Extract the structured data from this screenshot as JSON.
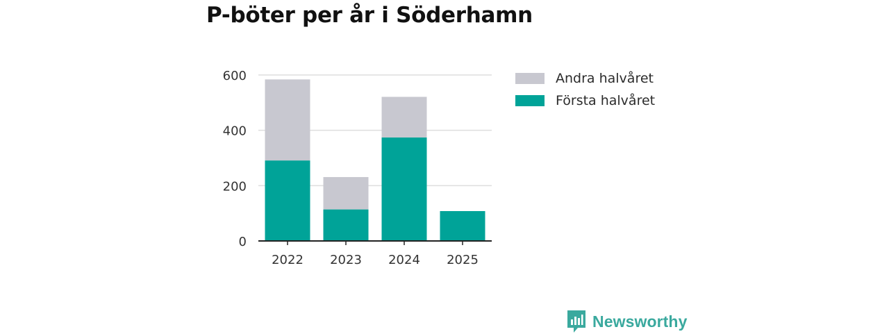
{
  "title": "P-böter per år i Söderhamn",
  "chart_data": {
    "type": "bar",
    "stacked": true,
    "title": "P-böter per år i Söderhamn",
    "xlabel": "",
    "ylabel": "",
    "categories": [
      "2022",
      "2023",
      "2024",
      "2025"
    ],
    "series": [
      {
        "name": "Första halvåret",
        "color": "#00a398",
        "values": [
          291,
          114,
          374,
          108
        ]
      },
      {
        "name": "Andra halvåret",
        "color": "#c8c8d0",
        "values": [
          293,
          117,
          147,
          0
        ]
      }
    ],
    "ylim": [
      0,
      600
    ],
    "yticks": [
      0,
      200,
      400,
      600
    ],
    "grid": true,
    "legend_position": "right"
  },
  "legend": [
    {
      "label": "Andra halvåret",
      "color": "#c8c8d0"
    },
    {
      "label": "Första halvåret",
      "color": "#00a398"
    }
  ],
  "brand": {
    "name": "Newsworthy",
    "icon": "newsworthy-logo-icon",
    "color": "#3aa99e"
  }
}
